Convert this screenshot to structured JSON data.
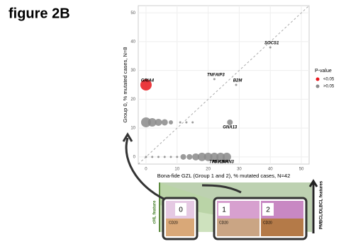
{
  "chart_data": {
    "type": "scatter",
    "title": "figure 2B",
    "x_label": "Bona-fide GZL (Group 1 and 2), % mutated cases, N=42",
    "y_label": "Group 0, % mutated cases, N=8",
    "xlim": [
      -2.5,
      52.5
    ],
    "ylim": [
      -2.5,
      52.5
    ],
    "xticks": [
      0,
      10,
      20,
      30,
      40,
      50
    ],
    "yticks": [
      0,
      10,
      20,
      30,
      40,
      50
    ],
    "grid": true,
    "legend_title": "P-value",
    "legend_position": "right",
    "series": [
      {
        "name": "<0.05",
        "color": "#e8151b",
        "x": [
          0
        ],
        "y": [
          25
        ],
        "sizes": [
          8
        ],
        "labels": [
          "GRIA4"
        ]
      },
      {
        "name": ">0.05",
        "color": "#8a8a8a",
        "x": [
          0,
          2,
          4,
          6,
          8,
          11,
          13,
          15,
          27,
          0,
          2,
          4,
          6,
          8,
          10,
          12,
          14,
          16,
          18,
          20,
          22,
          24,
          26,
          40,
          29,
          22
        ],
        "y": [
          12,
          12,
          12,
          12,
          12,
          12,
          12,
          12,
          12,
          0,
          0,
          0,
          0,
          0,
          0,
          0,
          0,
          0,
          0,
          0,
          0,
          0,
          0,
          38,
          25,
          27
        ],
        "sizes": [
          7,
          6,
          5,
          4.5,
          3,
          1.5,
          1.5,
          1.5,
          4,
          1.5,
          1.5,
          1.5,
          1.5,
          1.5,
          1.5,
          4,
          4,
          5,
          6,
          6,
          6,
          6,
          6,
          1.5,
          1.5,
          1.5
        ],
        "labels": [
          null,
          null,
          null,
          null,
          null,
          null,
          null,
          null,
          "GNA13",
          null,
          null,
          null,
          null,
          null,
          null,
          null,
          null,
          null,
          null,
          null,
          "TP53",
          "NFKBIA",
          "LRRN3",
          "SOCS1",
          "B2M",
          "TNFAIP3"
        ]
      }
    ]
  },
  "illustration": {
    "left_label": "cHL feature",
    "right_label": "PMBCL/DLBCL features",
    "groups": [
      "0",
      "1",
      "2"
    ],
    "stains": [
      "CD20",
      "CD20",
      "CD20"
    ]
  }
}
